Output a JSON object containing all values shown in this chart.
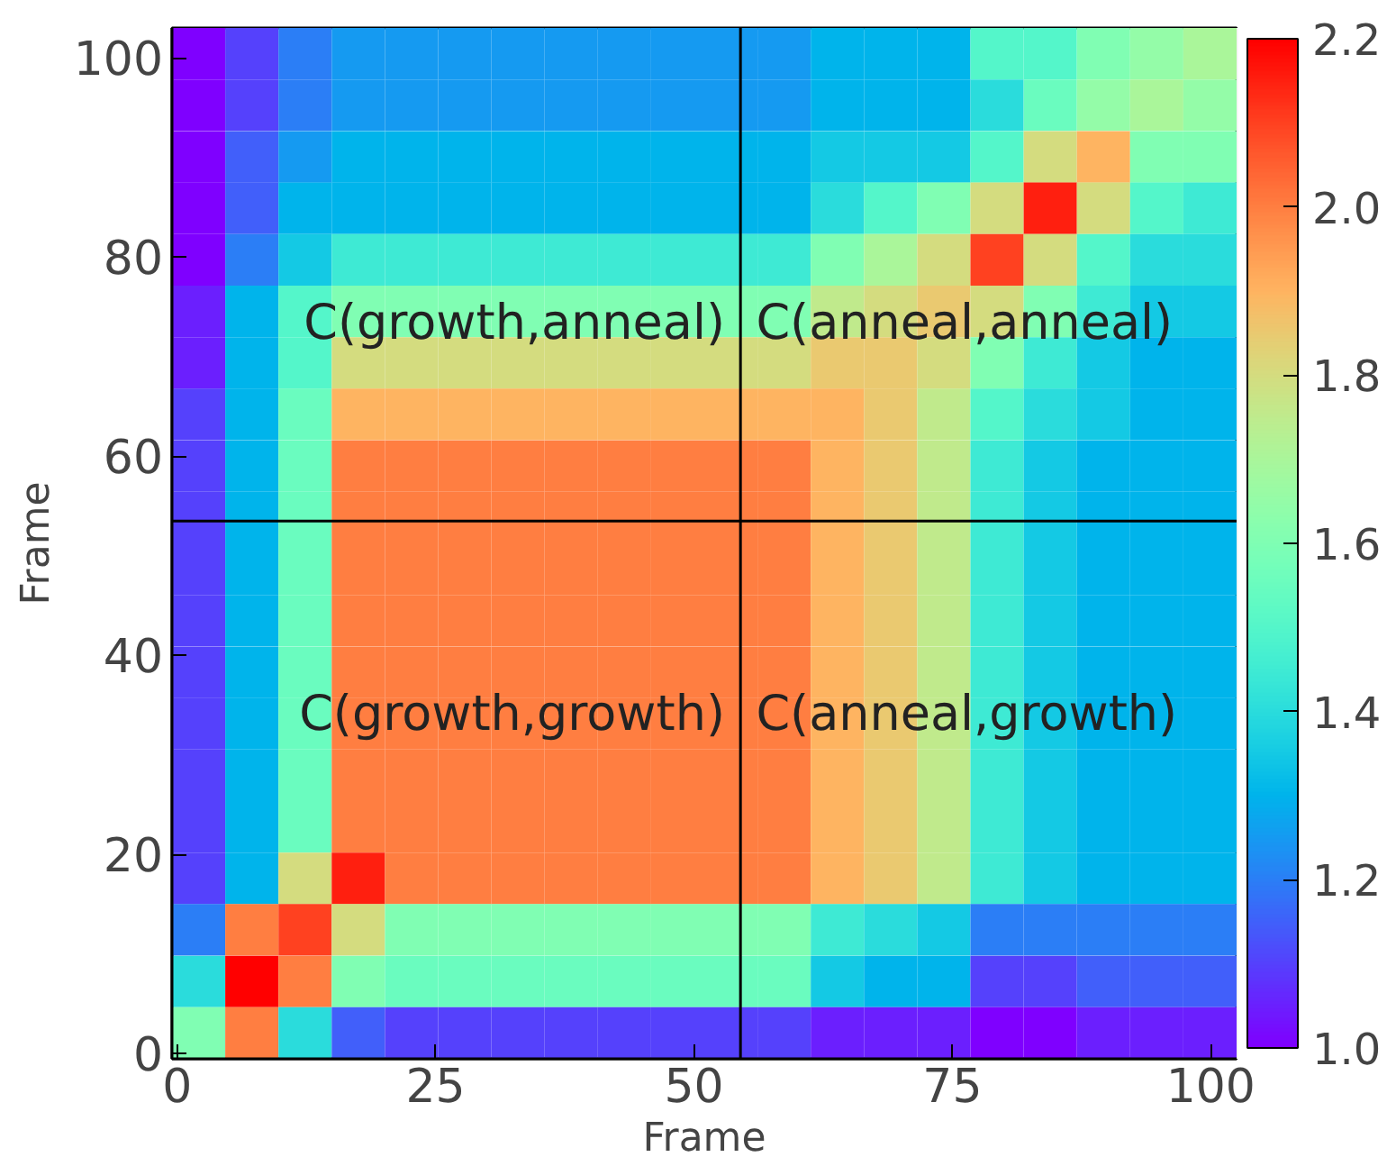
{
  "chart_data": {
    "type": "heatmap",
    "xlabel": "Frame",
    "ylabel": "Frame",
    "xlim": [
      -0.5,
      102.5
    ],
    "ylim": [
      -0.5,
      103
    ],
    "xticks": [
      0,
      25,
      50,
      75,
      100
    ],
    "yticks": [
      0,
      20,
      40,
      60,
      80,
      100
    ],
    "x": [
      2.075,
      7.225,
      12.375,
      17.525,
      22.675,
      27.825,
      32.975,
      38.125,
      43.275,
      48.425,
      53.575,
      58.725,
      63.875,
      69.025,
      74.175,
      79.325,
      84.475,
      89.625,
      94.775,
      99.925
    ],
    "y": [
      100.41,
      95.24,
      90.06,
      84.89,
      79.71,
      74.54,
      69.36,
      64.19,
      59.01,
      53.84,
      48.66,
      43.49,
      38.31,
      33.14,
      27.96,
      22.79,
      17.61,
      12.44,
      7.26,
      2.09
    ],
    "clim": [
      1.0,
      2.2
    ],
    "cticks": [
      {
        "value": 1.0,
        "label": "1.0"
      },
      {
        "value": 1.2,
        "label": "1.2"
      },
      {
        "value": 1.4,
        "label": "1.4"
      },
      {
        "value": 1.6,
        "label": "1.6"
      },
      {
        "value": 1.8,
        "label": "1.8"
      },
      {
        "value": 2.0,
        "label": "2.0"
      },
      {
        "value": 2.2,
        "label": "2.2"
      }
    ],
    "cells": [
      [
        1.0,
        1.1,
        1.2,
        1.25,
        1.25,
        1.25,
        1.25,
        1.25,
        1.25,
        1.25,
        1.25,
        1.25,
        1.3,
        1.3,
        1.3,
        1.5,
        1.5,
        1.6,
        1.65,
        1.7
      ],
      [
        1.0,
        1.1,
        1.2,
        1.25,
        1.25,
        1.25,
        1.25,
        1.25,
        1.25,
        1.25,
        1.25,
        1.25,
        1.3,
        1.3,
        1.3,
        1.4,
        1.55,
        1.65,
        1.7,
        1.65
      ],
      [
        1.0,
        1.15,
        1.25,
        1.3,
        1.3,
        1.3,
        1.3,
        1.3,
        1.3,
        1.3,
        1.3,
        1.3,
        1.35,
        1.35,
        1.35,
        1.5,
        1.8,
        1.9,
        1.6,
        1.6
      ],
      [
        1.0,
        1.15,
        1.3,
        1.3,
        1.3,
        1.3,
        1.3,
        1.3,
        1.3,
        1.3,
        1.3,
        1.3,
        1.4,
        1.5,
        1.6,
        1.8,
        2.15,
        1.8,
        1.5,
        1.45
      ],
      [
        1.0,
        1.2,
        1.35,
        1.45,
        1.45,
        1.45,
        1.45,
        1.45,
        1.45,
        1.45,
        1.45,
        1.45,
        1.6,
        1.7,
        1.8,
        2.1,
        1.8,
        1.5,
        1.4,
        1.4
      ],
      [
        1.05,
        1.3,
        1.5,
        1.6,
        1.6,
        1.6,
        1.6,
        1.6,
        1.6,
        1.6,
        1.6,
        1.6,
        1.75,
        1.8,
        1.85,
        1.8,
        1.6,
        1.45,
        1.35,
        1.35
      ],
      [
        1.05,
        1.3,
        1.5,
        1.8,
        1.8,
        1.8,
        1.8,
        1.8,
        1.8,
        1.8,
        1.8,
        1.8,
        1.85,
        1.85,
        1.8,
        1.6,
        1.45,
        1.35,
        1.3,
        1.3
      ],
      [
        1.1,
        1.3,
        1.55,
        1.9,
        1.9,
        1.9,
        1.9,
        1.9,
        1.9,
        1.9,
        1.9,
        1.9,
        1.9,
        1.85,
        1.75,
        1.5,
        1.4,
        1.35,
        1.3,
        1.3
      ],
      [
        1.1,
        1.3,
        1.55,
        2.0,
        2.0,
        2.0,
        2.0,
        2.0,
        2.0,
        2.0,
        2.0,
        2.0,
        1.9,
        1.85,
        1.75,
        1.45,
        1.35,
        1.3,
        1.3,
        1.3
      ],
      [
        1.1,
        1.3,
        1.55,
        2.0,
        2.0,
        2.0,
        2.0,
        2.0,
        2.0,
        2.0,
        2.0,
        2.0,
        1.9,
        1.85,
        1.75,
        1.45,
        1.35,
        1.3,
        1.3,
        1.3
      ],
      [
        1.1,
        1.3,
        1.55,
        2.0,
        2.0,
        2.0,
        2.0,
        2.0,
        2.0,
        2.0,
        2.0,
        2.0,
        1.9,
        1.85,
        1.75,
        1.45,
        1.35,
        1.3,
        1.3,
        1.3
      ],
      [
        1.1,
        1.3,
        1.55,
        2.0,
        2.0,
        2.0,
        2.0,
        2.0,
        2.0,
        2.0,
        2.0,
        2.0,
        1.9,
        1.85,
        1.75,
        1.45,
        1.35,
        1.3,
        1.3,
        1.3
      ],
      [
        1.1,
        1.3,
        1.55,
        2.0,
        2.0,
        2.0,
        2.0,
        2.0,
        2.0,
        2.0,
        2.0,
        2.0,
        1.9,
        1.85,
        1.75,
        1.45,
        1.35,
        1.3,
        1.3,
        1.3
      ],
      [
        1.1,
        1.3,
        1.55,
        2.0,
        2.0,
        2.0,
        2.0,
        2.0,
        2.0,
        2.0,
        2.0,
        2.0,
        1.9,
        1.85,
        1.75,
        1.45,
        1.35,
        1.3,
        1.3,
        1.3
      ],
      [
        1.1,
        1.3,
        1.55,
        2.0,
        2.0,
        2.0,
        2.0,
        2.0,
        2.0,
        2.0,
        2.0,
        2.0,
        1.9,
        1.85,
        1.75,
        1.45,
        1.35,
        1.3,
        1.3,
        1.3
      ],
      [
        1.1,
        1.3,
        1.55,
        2.0,
        2.0,
        2.0,
        2.0,
        2.0,
        2.0,
        2.0,
        2.0,
        2.0,
        1.9,
        1.85,
        1.75,
        1.45,
        1.35,
        1.3,
        1.3,
        1.3
      ],
      [
        1.1,
        1.3,
        1.8,
        2.15,
        2.0,
        2.0,
        2.0,
        2.0,
        2.0,
        2.0,
        2.0,
        2.0,
        1.9,
        1.85,
        1.75,
        1.45,
        1.35,
        1.3,
        1.3,
        1.3
      ],
      [
        1.2,
        2.0,
        2.1,
        1.8,
        1.6,
        1.6,
        1.6,
        1.6,
        1.6,
        1.6,
        1.6,
        1.6,
        1.45,
        1.4,
        1.35,
        1.2,
        1.2,
        1.2,
        1.2,
        1.2
      ],
      [
        1.4,
        2.2,
        2.0,
        1.6,
        1.55,
        1.55,
        1.55,
        1.55,
        1.55,
        1.55,
        1.55,
        1.55,
        1.35,
        1.3,
        1.3,
        1.1,
        1.1,
        1.15,
        1.15,
        1.15
      ],
      [
        1.6,
        2.0,
        1.4,
        1.15,
        1.1,
        1.1,
        1.1,
        1.1,
        1.1,
        1.1,
        1.1,
        1.1,
        1.05,
        1.05,
        1.05,
        1.0,
        1.0,
        1.05,
        1.05,
        1.05
      ]
    ],
    "ref_lines": [
      {
        "axis": "x",
        "value": 54.5,
        "color": "#000000"
      },
      {
        "axis": "y",
        "value": 53.5,
        "color": "#000000"
      }
    ],
    "annotations": [
      "C(growth,anneal)",
      "C(anneal,anneal)",
      "C(growth,growth)",
      "C(anneal,growth)"
    ],
    "grid": false
  }
}
